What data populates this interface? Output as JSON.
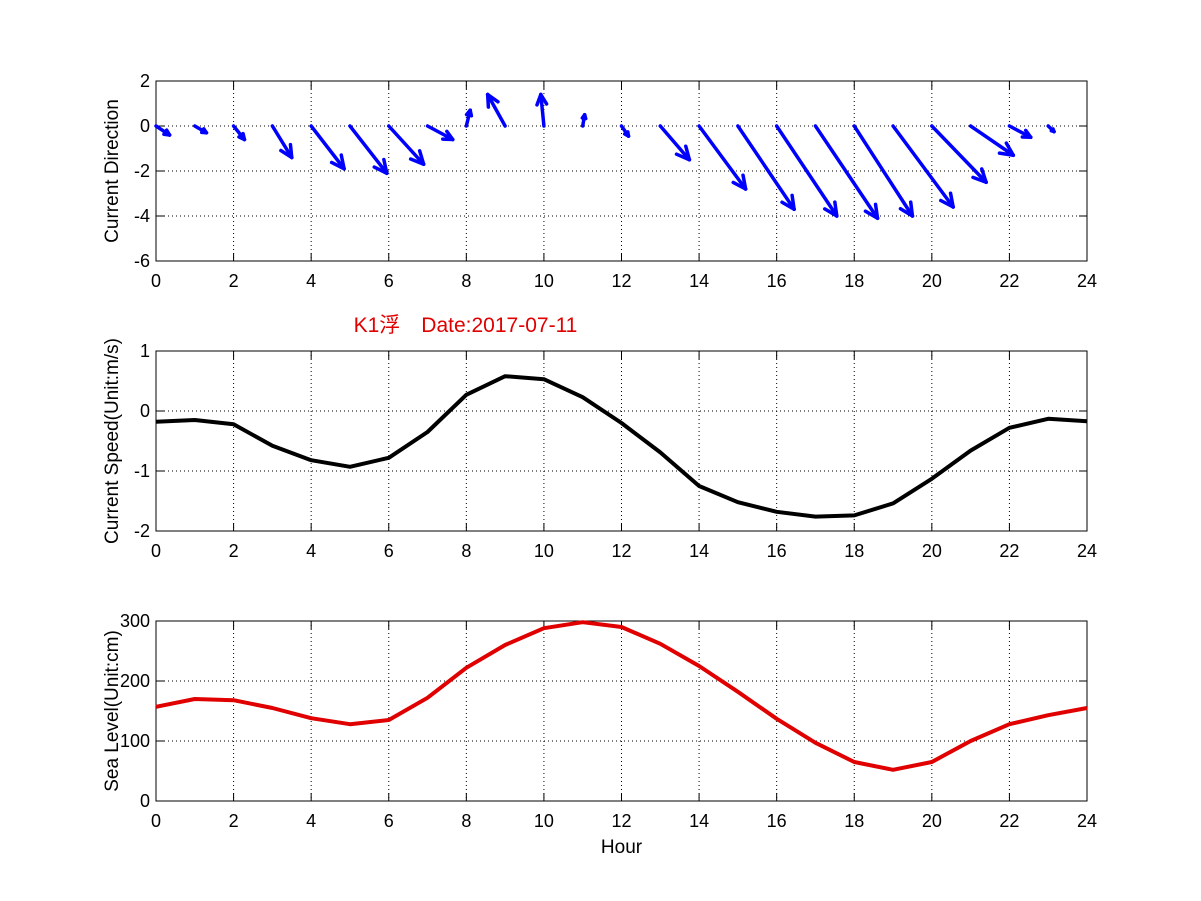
{
  "chart_data": [
    {
      "type": "quiver",
      "ylabel": "Current Direction",
      "xlim": [
        0,
        24
      ],
      "ylim": [
        -6,
        2
      ],
      "xticks": [
        "0",
        "2",
        "4",
        "6",
        "8",
        "10",
        "12",
        "14",
        "16",
        "18",
        "20",
        "22",
        "24"
      ],
      "yticks": [
        "-6",
        "-4",
        "-2",
        "0",
        "2"
      ],
      "grid": true,
      "color": "#0000ff",
      "x": [
        0,
        1,
        2,
        3,
        4,
        5,
        6,
        7,
        8,
        9,
        10,
        11,
        12,
        13,
        14,
        15,
        16,
        17,
        18,
        19,
        20,
        21,
        22,
        23
      ],
      "u": [
        0.35,
        0.3,
        0.28,
        0.5,
        0.85,
        0.95,
        0.9,
        0.65,
        0.1,
        -0.45,
        -0.08,
        0.05,
        0.18,
        0.75,
        1.2,
        1.45,
        1.55,
        1.6,
        1.5,
        1.55,
        1.4,
        1.1,
        0.55,
        0.15
      ],
      "v": [
        -0.4,
        -0.3,
        -0.6,
        -1.4,
        -1.9,
        -2.1,
        -1.7,
        -0.6,
        0.7,
        1.4,
        1.4,
        0.5,
        -0.45,
        -1.5,
        -2.8,
        -3.7,
        -4.0,
        -4.1,
        -4.0,
        -3.6,
        -2.5,
        -1.3,
        -0.5,
        -0.25
      ]
    },
    {
      "type": "line",
      "title": "K1浮　Date:2017-07-11",
      "ylabel": "Current Speed(Unit:m/s)",
      "xlim": [
        0,
        24
      ],
      "ylim": [
        -2,
        1
      ],
      "xticks": [
        "0",
        "2",
        "4",
        "6",
        "8",
        "10",
        "12",
        "14",
        "16",
        "18",
        "20",
        "22",
        "24"
      ],
      "yticks": [
        "-2",
        "-1",
        "0",
        "1"
      ],
      "grid": true,
      "color": "#000000",
      "x": [
        0,
        1,
        2,
        3,
        4,
        5,
        6,
        7,
        8,
        9,
        10,
        11,
        12,
        13,
        14,
        15,
        16,
        17,
        18,
        19,
        20,
        21,
        22,
        23,
        24
      ],
      "y": [
        -0.18,
        -0.15,
        -0.22,
        -0.58,
        -0.82,
        -0.93,
        -0.78,
        -0.35,
        0.27,
        0.58,
        0.53,
        0.23,
        -0.2,
        -0.69,
        -1.25,
        -1.52,
        -1.68,
        -1.76,
        -1.74,
        -1.54,
        -1.13,
        -0.66,
        -0.28,
        -0.13,
        -0.17
      ]
    },
    {
      "type": "line",
      "xlabel": "Hour",
      "ylabel": "Sea Level(Unit:cm)",
      "xlim": [
        0,
        24
      ],
      "ylim": [
        0,
        300
      ],
      "xticks": [
        "0",
        "2",
        "4",
        "6",
        "8",
        "10",
        "12",
        "14",
        "16",
        "18",
        "20",
        "22",
        "24"
      ],
      "yticks": [
        "0",
        "100",
        "200",
        "300"
      ],
      "grid": true,
      "color": "#e00000",
      "x": [
        0,
        1,
        2,
        3,
        4,
        5,
        6,
        7,
        8,
        9,
        10,
        11,
        12,
        13,
        14,
        15,
        16,
        17,
        18,
        19,
        20,
        21,
        22,
        23,
        24
      ],
      "y": [
        157,
        170,
        168,
        155,
        138,
        128,
        135,
        172,
        222,
        260,
        288,
        298,
        290,
        262,
        225,
        182,
        137,
        97,
        65,
        52,
        65,
        100,
        128,
        143,
        155
      ]
    }
  ]
}
